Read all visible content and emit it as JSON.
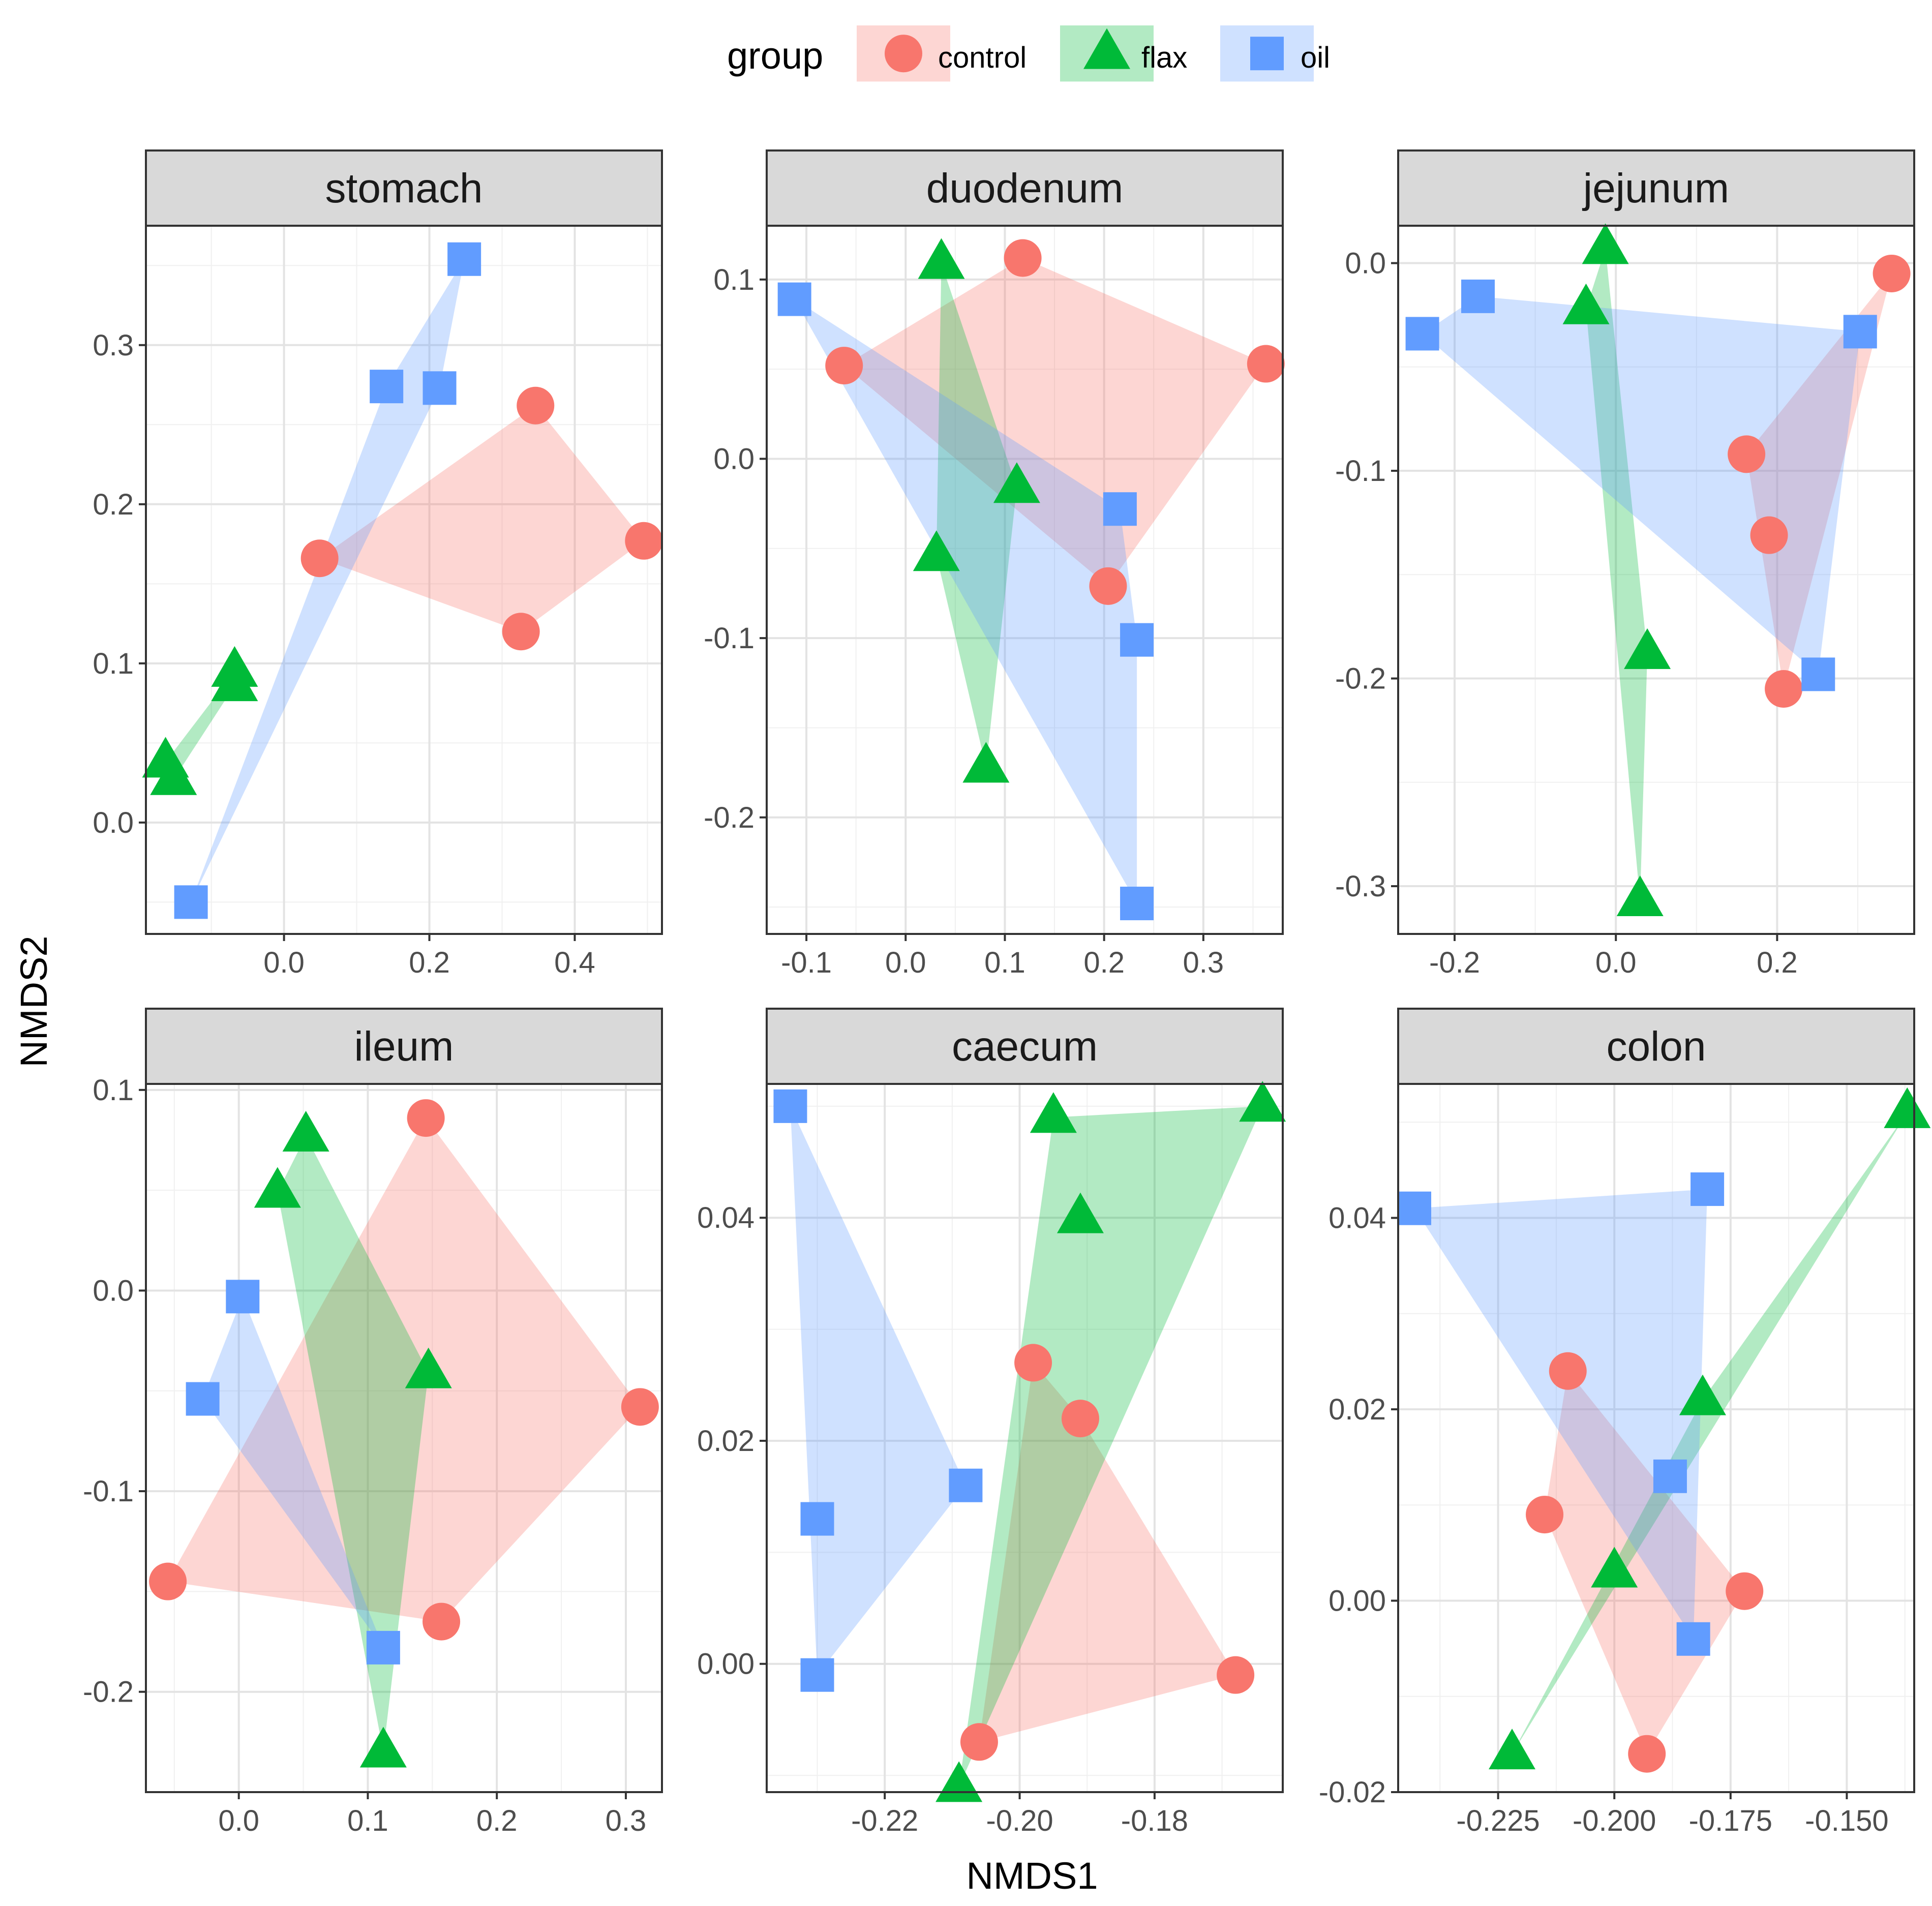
{
  "chart_data": {
    "type": "scatter",
    "subtype": "faceted NMDS ordination with convex hulls",
    "xlabel": "NMDS1",
    "ylabel": "NMDS2",
    "legend": {
      "title": "group",
      "position": "top",
      "entries": [
        {
          "name": "control",
          "color": "#F8766D",
          "shape": "circle"
        },
        {
          "name": "flax",
          "color": "#00BA38",
          "shape": "triangle"
        },
        {
          "name": "oil",
          "color": "#619CFF",
          "shape": "square"
        }
      ]
    },
    "facets": [
      {
        "title": "stomach",
        "xlim": [
          -0.19,
          0.52
        ],
        "ylim": [
          -0.07,
          0.375
        ],
        "xticks": [
          {
            "v": 0.0,
            "label": "0.0"
          },
          {
            "v": 0.2,
            "label": "0.2"
          },
          {
            "v": 0.4,
            "label": "0.4"
          }
        ],
        "yticks": [
          {
            "v": 0.0,
            "label": "0.0"
          },
          {
            "v": 0.1,
            "label": "0.1"
          },
          {
            "v": 0.2,
            "label": "0.2"
          },
          {
            "v": 0.3,
            "label": "0.3"
          }
        ],
        "series": [
          {
            "name": "control",
            "points": [
              [
                0.346,
                0.262
              ],
              [
                0.495,
                0.177
              ],
              [
                0.326,
                0.12
              ],
              [
                0.049,
                0.166
              ]
            ]
          },
          {
            "name": "flax",
            "points": [
              [
                -0.068,
                0.095
              ],
              [
                -0.068,
                0.086
              ],
              [
                -0.163,
                0.038
              ],
              [
                -0.152,
                0.027
              ]
            ]
          },
          {
            "name": "oil",
            "points": [
              [
                0.248,
                0.354
              ],
              [
                0.141,
                0.274
              ],
              [
                0.214,
                0.273
              ],
              [
                -0.128,
                -0.05
              ]
            ]
          }
        ]
      },
      {
        "title": "duodenum",
        "xlim": [
          -0.14,
          0.38
        ],
        "ylim": [
          -0.265,
          0.13
        ],
        "xticks": [
          {
            "v": -0.1,
            "label": "-0.1"
          },
          {
            "v": 0.0,
            "label": "0.0"
          },
          {
            "v": 0.1,
            "label": "0.1"
          },
          {
            "v": 0.2,
            "label": "0.2"
          },
          {
            "v": 0.3,
            "label": "0.3"
          }
        ],
        "yticks": [
          {
            "v": -0.2,
            "label": "-0.2"
          },
          {
            "v": -0.1,
            "label": "-0.1"
          },
          {
            "v": 0.0,
            "label": "0.0"
          },
          {
            "v": 0.1,
            "label": "0.1"
          }
        ],
        "series": [
          {
            "name": "control",
            "points": [
              [
                0.118,
                0.112
              ],
              [
                0.363,
                0.053
              ],
              [
                0.204,
                -0.071
              ],
              [
                -0.062,
                0.052
              ]
            ]
          },
          {
            "name": "flax",
            "points": [
              [
                0.036,
                0.109
              ],
              [
                0.112,
                -0.016
              ],
              [
                0.031,
                -0.054
              ],
              [
                0.081,
                -0.172
              ]
            ]
          },
          {
            "name": "oil",
            "points": [
              [
                -0.112,
                0.089
              ],
              [
                0.216,
                -0.028
              ],
              [
                0.233,
                -0.101
              ],
              [
                0.233,
                -0.248
              ]
            ]
          }
        ]
      },
      {
        "title": "jejunum",
        "xlim": [
          -0.27,
          0.37
        ],
        "ylim": [
          -0.323,
          0.018
        ],
        "xticks": [
          {
            "v": -0.2,
            "label": "-0.2"
          },
          {
            "v": 0.0,
            "label": "0.0"
          },
          {
            "v": 0.2,
            "label": "0.2"
          }
        ],
        "yticks": [
          {
            "v": -0.3,
            "label": "-0.3"
          },
          {
            "v": -0.2,
            "label": "-0.2"
          },
          {
            "v": -0.1,
            "label": "-0.1"
          },
          {
            "v": 0.0,
            "label": "0.0"
          }
        ],
        "series": [
          {
            "name": "control",
            "points": [
              [
                0.342,
                -0.005
              ],
              [
                0.162,
                -0.092
              ],
              [
                0.19,
                -0.131
              ],
              [
                0.208,
                -0.205
              ]
            ]
          },
          {
            "name": "flax",
            "points": [
              [
                -0.013,
                0.007
              ],
              [
                -0.037,
                -0.022
              ],
              [
                0.039,
                -0.188
              ],
              [
                0.03,
                -0.307
              ]
            ]
          },
          {
            "name": "oil",
            "points": [
              [
                -0.24,
                -0.034
              ],
              [
                -0.171,
                -0.016
              ],
              [
                0.303,
                -0.033
              ],
              [
                0.251,
                -0.198
              ]
            ]
          }
        ]
      },
      {
        "title": "ileum",
        "xlim": [
          -0.072,
          0.328
        ],
        "ylim": [
          -0.25,
          0.103
        ],
        "xticks": [
          {
            "v": 0.0,
            "label": "0.0"
          },
          {
            "v": 0.1,
            "label": "0.1"
          },
          {
            "v": 0.2,
            "label": "0.2"
          },
          {
            "v": 0.3,
            "label": "0.3"
          }
        ],
        "yticks": [
          {
            "v": -0.2,
            "label": "-0.2"
          },
          {
            "v": -0.1,
            "label": "-0.1"
          },
          {
            "v": 0.0,
            "label": "0.0"
          },
          {
            "v": 0.1,
            "label": "0.1"
          }
        ],
        "series": [
          {
            "name": "control",
            "points": [
              [
                0.145,
                0.086
              ],
              [
                0.311,
                -0.058
              ],
              [
                0.157,
                -0.165
              ],
              [
                -0.055,
                -0.145
              ]
            ]
          },
          {
            "name": "flax",
            "points": [
              [
                0.052,
                0.077
              ],
              [
                0.03,
                0.049
              ],
              [
                0.147,
                -0.041
              ],
              [
                0.112,
                -0.23
              ]
            ]
          },
          {
            "name": "oil",
            "points": [
              [
                0.003,
                -0.003
              ],
              [
                -0.028,
                -0.054
              ],
              [
                0.112,
                -0.178
              ]
            ]
          }
        ]
      },
      {
        "title": "caecum",
        "xlim": [
          -0.2375,
          -0.161
        ],
        "ylim": [
          -0.0115,
          0.052
        ],
        "xticks": [
          {
            "v": -0.22,
            "label": "-0.22"
          },
          {
            "v": -0.2,
            "label": "-0.20"
          },
          {
            "v": -0.18,
            "label": "-0.18"
          }
        ],
        "yticks": [
          {
            "v": 0.0,
            "label": "0.00"
          },
          {
            "v": 0.02,
            "label": "0.02"
          },
          {
            "v": 0.04,
            "label": "0.04"
          }
        ],
        "series": [
          {
            "name": "control",
            "points": [
              [
                -0.198,
                0.027
              ],
              [
                -0.191,
                0.022
              ],
              [
                -0.168,
                -0.001
              ],
              [
                -0.206,
                -0.007
              ]
            ]
          },
          {
            "name": "flax",
            "points": [
              [
                -0.195,
                0.049
              ],
              [
                -0.164,
                0.05
              ],
              [
                -0.191,
                0.04
              ],
              [
                -0.209,
                -0.011
              ]
            ]
          },
          {
            "name": "oil",
            "points": [
              [
                -0.234,
                0.05
              ],
              [
                -0.23,
                0.013
              ],
              [
                -0.208,
                0.016
              ],
              [
                -0.23,
                -0.001
              ]
            ]
          }
        ]
      },
      {
        "title": "colon",
        "xlim": [
          -0.2465,
          -0.1355
        ],
        "ylim": [
          -0.02,
          0.054
        ],
        "xticks": [
          {
            "v": -0.225,
            "label": "-0.225"
          },
          {
            "v": -0.2,
            "label": "-0.200"
          },
          {
            "v": -0.175,
            "label": "-0.175"
          },
          {
            "v": -0.15,
            "label": "-0.150"
          }
        ],
        "yticks": [
          {
            "v": -0.02,
            "label": "-0.02"
          },
          {
            "v": 0.0,
            "label": "0.00"
          },
          {
            "v": 0.02,
            "label": "0.02"
          },
          {
            "v": 0.04,
            "label": "0.04"
          }
        ],
        "series": [
          {
            "name": "control",
            "points": [
              [
                -0.21,
                0.024
              ],
              [
                -0.215,
                0.009
              ],
              [
                -0.172,
                0.001
              ],
              [
                -0.193,
                -0.016
              ]
            ]
          },
          {
            "name": "flax",
            "points": [
              [
                -0.137,
                0.051
              ],
              [
                -0.181,
                0.021
              ],
              [
                -0.2,
                0.003
              ],
              [
                -0.222,
                -0.016
              ]
            ]
          },
          {
            "name": "oil",
            "points": [
              [
                -0.243,
                0.041
              ],
              [
                -0.18,
                0.043
              ],
              [
                -0.188,
                0.013
              ],
              [
                -0.183,
                -0.004
              ]
            ]
          }
        ]
      }
    ]
  }
}
